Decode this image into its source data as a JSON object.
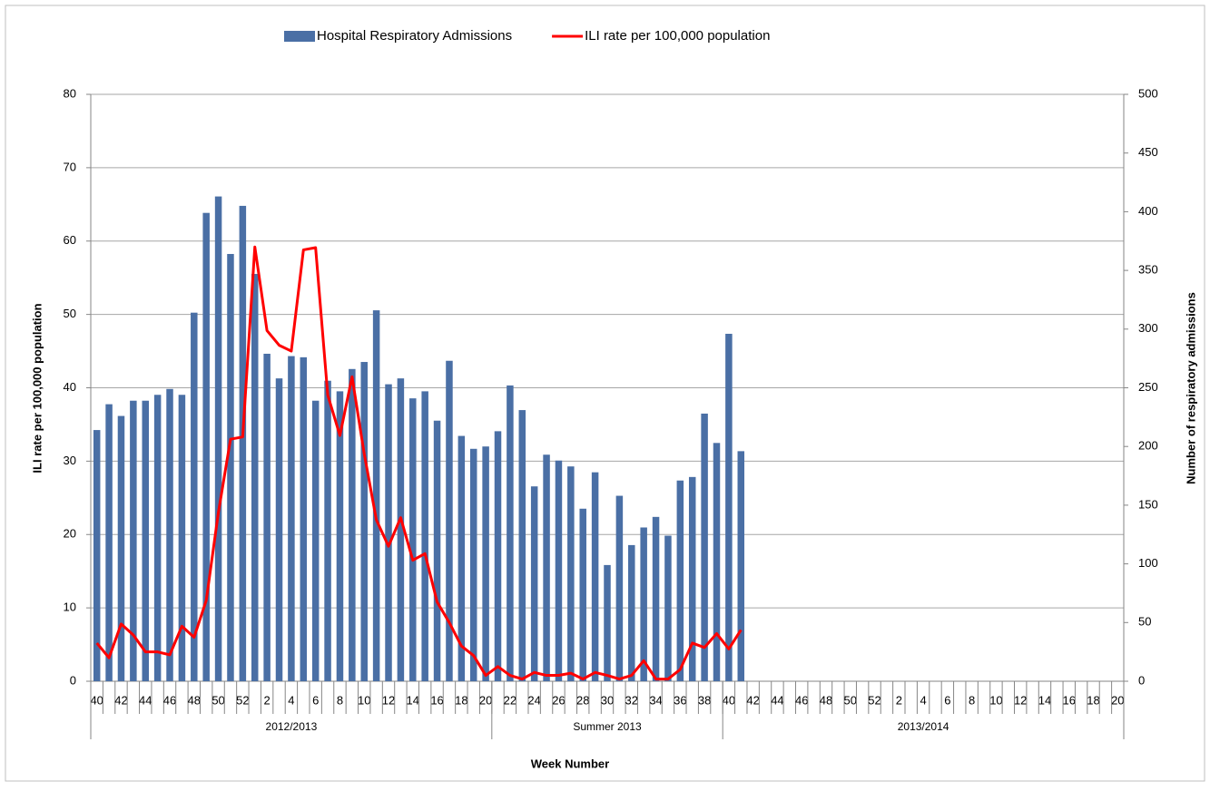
{
  "chart_data": {
    "type": "bar-line",
    "y_label": "ILI rate per 100,000 population",
    "y2_label": "Number of respiratory admissions",
    "x_label": "Week Number",
    "categories": [
      "40",
      null,
      "42",
      null,
      "44",
      null,
      "46",
      null,
      "48",
      null,
      "50",
      null,
      "52",
      null,
      "2",
      null,
      "4",
      null,
      "6",
      null,
      "8",
      null,
      "10",
      null,
      "12",
      null,
      "14",
      null,
      "16",
      null,
      "18",
      null,
      "20",
      null,
      "22",
      null,
      "24",
      null,
      "26",
      null,
      "28",
      null,
      "30",
      null,
      "32",
      null,
      "34",
      null,
      "36",
      null,
      "38",
      null,
      "40",
      null,
      "42",
      null,
      "44",
      null,
      "46",
      null,
      "48",
      null,
      "50",
      null,
      "52",
      null,
      "2",
      null,
      "4",
      null,
      "6",
      null,
      "8",
      null,
      "10",
      null,
      "12",
      null,
      "14",
      null,
      "16",
      null,
      "18",
      null,
      "20"
    ],
    "groups": [
      {
        "label": "2012/2013",
        "size": 33
      },
      {
        "label": "Summer 2013",
        "size": 19
      },
      {
        "label": "2013/2014",
        "size": 33
      }
    ],
    "series": [
      {
        "name": "Hospital Respiratory Admissions",
        "kind": "bar",
        "axis": "y2",
        "color": "#4a6fa5",
        "values": [
          214,
          236,
          226,
          239,
          239,
          244,
          249,
          244,
          314,
          399,
          413,
          364,
          405,
          347,
          279,
          258,
          277,
          276,
          239,
          256,
          247,
          266,
          272,
          316,
          253,
          258,
          241,
          247,
          222,
          273,
          209,
          198,
          200,
          213,
          252,
          231,
          166,
          193,
          188,
          183,
          147,
          178,
          99,
          158,
          116,
          131,
          140,
          124,
          171,
          174,
          228,
          203,
          296,
          196,
          null,
          null,
          null,
          null,
          null,
          null,
          null,
          null,
          null,
          null,
          null,
          null,
          null,
          null,
          null,
          null,
          null,
          null,
          null,
          null,
          null,
          null,
          null,
          null,
          null,
          null,
          null,
          null,
          null,
          null,
          null
        ]
      },
      {
        "name": "ILI rate per 100,000 population",
        "kind": "line",
        "axis": "y",
        "color": "#ff0000",
        "values": [
          5.2,
          3.2,
          7.8,
          6.3,
          4.0,
          4.0,
          3.6,
          7.5,
          6.0,
          11,
          23,
          33,
          33.3,
          59.2,
          47.8,
          45.8,
          45,
          58.8,
          59.1,
          39,
          33.5,
          41.5,
          31,
          22,
          18.4,
          22.3,
          16.5,
          17.4,
          10.8,
          8,
          4.8,
          3.5,
          0.8,
          2.0,
          0.8,
          0.3,
          1.2,
          0.8,
          0.8,
          1.1,
          0.3,
          1.2,
          0.8,
          0.3,
          0.8,
          2.8,
          0.3,
          0.3,
          1.6,
          5.2,
          4.6,
          6.5,
          4.4,
          7.0,
          null,
          null,
          null,
          null,
          null,
          null,
          null,
          null,
          null,
          null,
          null,
          null,
          null,
          null,
          null,
          null,
          null,
          null,
          null,
          null,
          null,
          null,
          null,
          null,
          null,
          null,
          null,
          null,
          null,
          null,
          null
        ]
      }
    ],
    "ylim": [
      0,
      80
    ],
    "yticks": [
      0,
      10,
      20,
      30,
      40,
      50,
      60,
      70,
      80
    ],
    "y2lim": [
      0,
      500
    ],
    "y2ticks": [
      0,
      50,
      100,
      150,
      200,
      250,
      300,
      350,
      400,
      450,
      500
    ],
    "grid": true,
    "legend": "top"
  }
}
